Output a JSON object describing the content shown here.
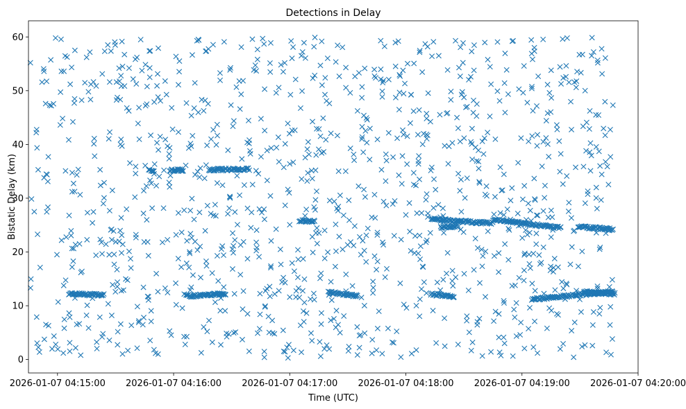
{
  "chart_data": {
    "type": "scatter",
    "title": "Detections in Delay",
    "xlabel": "Time (UTC)",
    "ylabel": "Bistatic Delay (km)",
    "x_unit": "seconds after 04:14:45",
    "xlim": [
      0,
      315
    ],
    "ylim": [
      -2.5,
      63
    ],
    "x_ticks": [
      {
        "value": 15,
        "label": "2026-01-07 04:15:00"
      },
      {
        "value": 75,
        "label": "2026-01-07 04:16:00"
      },
      {
        "value": 135,
        "label": "2026-01-07 04:17:00"
      },
      {
        "value": 195,
        "label": "2026-01-07 04:18:00"
      },
      {
        "value": 255,
        "label": "2026-01-07 04:19:00"
      },
      {
        "value": 315,
        "label": "2026-01-07 04:20:00"
      }
    ],
    "y_ticks": [
      0,
      10,
      20,
      30,
      40,
      50,
      60
    ],
    "marker": "x",
    "color": "#1f77b4",
    "grid": false,
    "data_x_range": [
      0,
      302
    ],
    "tracks": [
      {
        "x": [
          21,
          39
        ],
        "y": [
          12.2,
          12.0
        ]
      },
      {
        "x": [
          82,
          102
        ],
        "y": [
          11.8,
          12.2
        ]
      },
      {
        "x": [
          93,
          114
        ],
        "y": [
          35.3,
          35.4
        ]
      },
      {
        "x": [
          73,
          80
        ],
        "y": [
          35.2,
          35.2
        ]
      },
      {
        "x": [
          62,
          65
        ],
        "y": [
          35.2,
          35.2
        ]
      },
      {
        "x": [
          155,
          170
        ],
        "y": [
          12.5,
          11.8
        ]
      },
      {
        "x": [
          140,
          148
        ],
        "y": [
          25.8,
          25.7
        ]
      },
      {
        "x": [
          208,
          240
        ],
        "y": [
          26.1,
          25.3
        ]
      },
      {
        "x": [
          240,
          275
        ],
        "y": [
          26.0,
          24.5
        ]
      },
      {
        "x": [
          284,
          302
        ],
        "y": [
          24.7,
          24.2
        ]
      },
      {
        "x": [
          213,
          222
        ],
        "y": [
          24.6,
          24.8
        ]
      },
      {
        "x": [
          208,
          220
        ],
        "y": [
          12.2,
          11.6
        ]
      },
      {
        "x": [
          260,
          302
        ],
        "y": [
          11.2,
          12.6
        ]
      },
      {
        "x": [
          287,
          303
        ],
        "y": [
          12.6,
          12.2
        ]
      }
    ],
    "sample_points": [
      [
        1,
        55.2
      ],
      [
        3,
        27.5
      ],
      [
        4,
        42.2
      ],
      [
        5,
        35.3
      ],
      [
        8,
        53.6
      ],
      [
        9,
        6.5
      ],
      [
        11,
        47.3
      ],
      [
        14,
        59.8
      ],
      [
        17,
        53.6
      ],
      [
        18,
        1.2
      ],
      [
        21,
        26.8
      ],
      [
        24,
        57.5
      ],
      [
        27,
        0.8
      ],
      [
        31,
        49.8
      ],
      [
        34,
        41.1
      ],
      [
        37,
        35.3
      ],
      [
        41,
        58.5
      ],
      [
        44,
        23.9
      ],
      [
        48,
        12.8
      ],
      [
        52,
        54.2
      ],
      [
        55,
        30.2
      ],
      [
        58,
        59.5
      ],
      [
        62,
        19.3
      ],
      [
        67,
        1.0
      ],
      [
        70,
        35.2
      ],
      [
        74,
        46.8
      ],
      [
        78,
        55.5
      ],
      [
        81,
        2.8
      ],
      [
        85,
        15.7
      ],
      [
        88,
        59.4
      ],
      [
        91,
        33.7
      ],
      [
        95,
        3.2
      ],
      [
        99,
        53.3
      ],
      [
        103,
        27.1
      ],
      [
        107,
        5.1
      ],
      [
        110,
        58.1
      ],
      [
        114,
        40.2
      ],
      [
        118,
        20.8
      ],
      [
        121,
        59.7
      ],
      [
        124,
        8.0
      ],
      [
        128,
        49.6
      ],
      [
        131,
        14.4
      ],
      [
        134,
        43.9
      ],
      [
        137,
        1.7
      ],
      [
        141,
        56.5
      ],
      [
        144,
        33.2
      ],
      [
        148,
        59.9
      ],
      [
        151,
        0.6
      ],
      [
        154,
        48.1
      ],
      [
        158,
        29.4
      ],
      [
        161,
        5.0
      ],
      [
        164,
        54.3
      ],
      [
        168,
        21.2
      ],
      [
        171,
        2.2
      ],
      [
        175,
        44.6
      ],
      [
        178,
        14.5
      ],
      [
        182,
        59.3
      ],
      [
        185,
        37.0
      ],
      [
        188,
        3.2
      ],
      [
        192,
        52.7
      ],
      [
        195,
        26.9
      ],
      [
        198,
        1.1
      ],
      [
        202,
        33.5
      ],
      [
        205,
        58.7
      ],
      [
        209,
        9.1
      ],
      [
        212,
        56.5
      ],
      [
        216,
        16.0
      ],
      [
        219,
        40.3
      ],
      [
        222,
        2.8
      ],
      [
        226,
        46.9
      ],
      [
        229,
        57.3
      ],
      [
        233,
        7.6
      ],
      [
        236,
        30.7
      ],
      [
        239,
        51.2
      ],
      [
        243,
        19.8
      ],
      [
        246,
        3.0
      ],
      [
        250,
        59.2
      ],
      [
        253,
        36.6
      ],
      [
        256,
        14.7
      ],
      [
        260,
        56.9
      ],
      [
        263,
        1.2
      ],
      [
        266,
        40.5
      ],
      [
        270,
        24.9
      ],
      [
        273,
        8.5
      ],
      [
        276,
        59.6
      ],
      [
        280,
        17.7
      ],
      [
        283,
        50.6
      ],
      [
        286,
        2.4
      ],
      [
        289,
        31.3
      ],
      [
        292,
        57.2
      ],
      [
        295,
        8.5
      ],
      [
        298,
        41.7
      ],
      [
        300,
        24.0
      ],
      [
        301,
        0.9
      ],
      [
        302,
        47.3
      ]
    ]
  }
}
